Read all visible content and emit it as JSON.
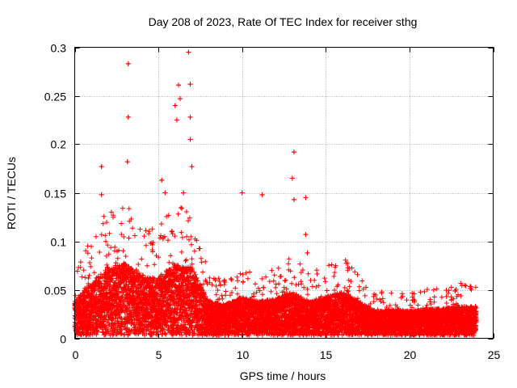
{
  "chart_data": {
    "type": "scatter",
    "title": "Day 208 of 2023, Rate Of TEC Index for receiver sthg",
    "xlabel": "GPS time / hours",
    "ylabel": "ROTI / TECUs",
    "xlim": [
      0,
      25
    ],
    "ylim": [
      0,
      0.3
    ],
    "x_ticks": [
      0,
      5,
      10,
      15,
      20,
      25
    ],
    "x_tick_labels": [
      "0",
      "5",
      "10",
      "15",
      "20",
      "25"
    ],
    "y_ticks": [
      0,
      0.05,
      0.1,
      0.15,
      0.2,
      0.25,
      0.3
    ],
    "y_tick_labels": [
      "0",
      "0.05",
      "0.1",
      "0.15",
      "0.2",
      "0.25",
      "0.3"
    ],
    "grid": true,
    "marker": "+",
    "series_color": "#ff0000",
    "series": [
      {
        "name": "ROTI",
        "x_range": [
          0,
          24
        ],
        "sample_step_hours": 0.00833,
        "baseline_envelope": [
          {
            "x": 0.0,
            "y": 0.035
          },
          {
            "x": 1.0,
            "y": 0.055
          },
          {
            "x": 2.0,
            "y": 0.07
          },
          {
            "x": 3.0,
            "y": 0.075
          },
          {
            "x": 4.0,
            "y": 0.06
          },
          {
            "x": 5.0,
            "y": 0.06
          },
          {
            "x": 6.0,
            "y": 0.075
          },
          {
            "x": 7.0,
            "y": 0.07
          },
          {
            "x": 8.0,
            "y": 0.035
          },
          {
            "x": 9.0,
            "y": 0.032
          },
          {
            "x": 10.0,
            "y": 0.04
          },
          {
            "x": 11.0,
            "y": 0.035
          },
          {
            "x": 12.0,
            "y": 0.038
          },
          {
            "x": 13.0,
            "y": 0.045
          },
          {
            "x": 14.0,
            "y": 0.035
          },
          {
            "x": 15.0,
            "y": 0.04
          },
          {
            "x": 16.0,
            "y": 0.045
          },
          {
            "x": 17.0,
            "y": 0.035
          },
          {
            "x": 18.0,
            "y": 0.025
          },
          {
            "x": 19.0,
            "y": 0.027
          },
          {
            "x": 20.0,
            "y": 0.025
          },
          {
            "x": 21.0,
            "y": 0.027
          },
          {
            "x": 22.0,
            "y": 0.028
          },
          {
            "x": 23.0,
            "y": 0.03
          },
          {
            "x": 24.0,
            "y": 0.03
          }
        ],
        "notable_points": [
          {
            "x": 3.2,
            "y": 0.283
          },
          {
            "x": 3.2,
            "y": 0.228
          },
          {
            "x": 3.15,
            "y": 0.182
          },
          {
            "x": 1.6,
            "y": 0.177
          },
          {
            "x": 1.6,
            "y": 0.148
          },
          {
            "x": 5.2,
            "y": 0.163
          },
          {
            "x": 5.4,
            "y": 0.15
          },
          {
            "x": 6.0,
            "y": 0.24
          },
          {
            "x": 6.2,
            "y": 0.261
          },
          {
            "x": 6.3,
            "y": 0.247
          },
          {
            "x": 6.1,
            "y": 0.225
          },
          {
            "x": 6.8,
            "y": 0.295
          },
          {
            "x": 6.9,
            "y": 0.262
          },
          {
            "x": 6.9,
            "y": 0.228
          },
          {
            "x": 6.9,
            "y": 0.205
          },
          {
            "x": 7.0,
            "y": 0.177
          },
          {
            "x": 6.5,
            "y": 0.15
          },
          {
            "x": 10.0,
            "y": 0.15
          },
          {
            "x": 11.2,
            "y": 0.148
          },
          {
            "x": 13.1,
            "y": 0.192
          },
          {
            "x": 13.0,
            "y": 0.165
          },
          {
            "x": 13.1,
            "y": 0.143
          },
          {
            "x": 13.8,
            "y": 0.145
          },
          {
            "x": 13.8,
            "y": 0.107
          },
          {
            "x": 13.9,
            "y": 0.088
          }
        ]
      }
    ]
  }
}
